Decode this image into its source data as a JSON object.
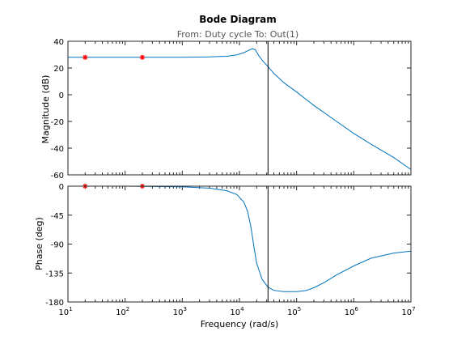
{
  "chart_data": {
    "type": "line",
    "title": "Bode Diagram",
    "subtitle": "From: Duty cycle  To: Out(1)",
    "xlabel": "Frequency  (rad/s)",
    "xscale": "log",
    "xlim": [
      10,
      10000000
    ],
    "x_ticks": [
      {
        "base": "10",
        "exp": "1"
      },
      {
        "base": "10",
        "exp": "2"
      },
      {
        "base": "10",
        "exp": "3"
      },
      {
        "base": "10",
        "exp": "4"
      },
      {
        "base": "10",
        "exp": "5"
      },
      {
        "base": "10",
        "exp": "6"
      },
      {
        "base": "10",
        "exp": "7"
      }
    ],
    "vertical_marker_x": 31623,
    "marker_x": [
      20,
      200
    ],
    "colors": {
      "curve": "#0072bd",
      "marker": "#ff0000",
      "vertical_line": "#000000"
    },
    "magnitude": {
      "ylabel": "Magnitude (dB)",
      "ylim": [
        -60,
        40
      ],
      "y_ticks": [
        "40",
        "20",
        "0",
        "-20",
        "-40",
        "-60"
      ],
      "x": [
        10,
        100,
        1000,
        3000,
        6000,
        9000,
        12000,
        15000,
        17000,
        19000,
        22000,
        26000,
        31623,
        40000,
        60000,
        100000,
        200000,
        500000,
        1000000,
        2000000,
        5000000,
        10000000
      ],
      "y": [
        28,
        28,
        28,
        28.3,
        28.8,
        29.8,
        31.5,
        33.5,
        34.5,
        33.5,
        29,
        25,
        21,
        16,
        9,
        2,
        -8,
        -20,
        -29,
        -37,
        -47,
        -56
      ],
      "markers_y": [
        28,
        28
      ]
    },
    "phase": {
      "ylabel": "Phase (deg)",
      "ylim": [
        -180,
        0
      ],
      "y_ticks": [
        "0",
        "-45",
        "-90",
        "-135",
        "-180"
      ],
      "x": [
        10,
        100,
        1000,
        3000,
        6000,
        9000,
        12000,
        14000,
        16000,
        18000,
        20000,
        25000,
        31623,
        40000,
        60000,
        100000,
        150000,
        200000,
        300000,
        500000,
        1000000,
        2000000,
        5000000,
        10000000
      ],
      "y": [
        0,
        0,
        -1,
        -3,
        -7,
        -13,
        -25,
        -40,
        -65,
        -95,
        -120,
        -145,
        -157,
        -162,
        -164,
        -164,
        -162,
        -158,
        -150,
        -138,
        -124,
        -112,
        -104,
        -101
      ],
      "markers_y": [
        0,
        0
      ]
    }
  }
}
